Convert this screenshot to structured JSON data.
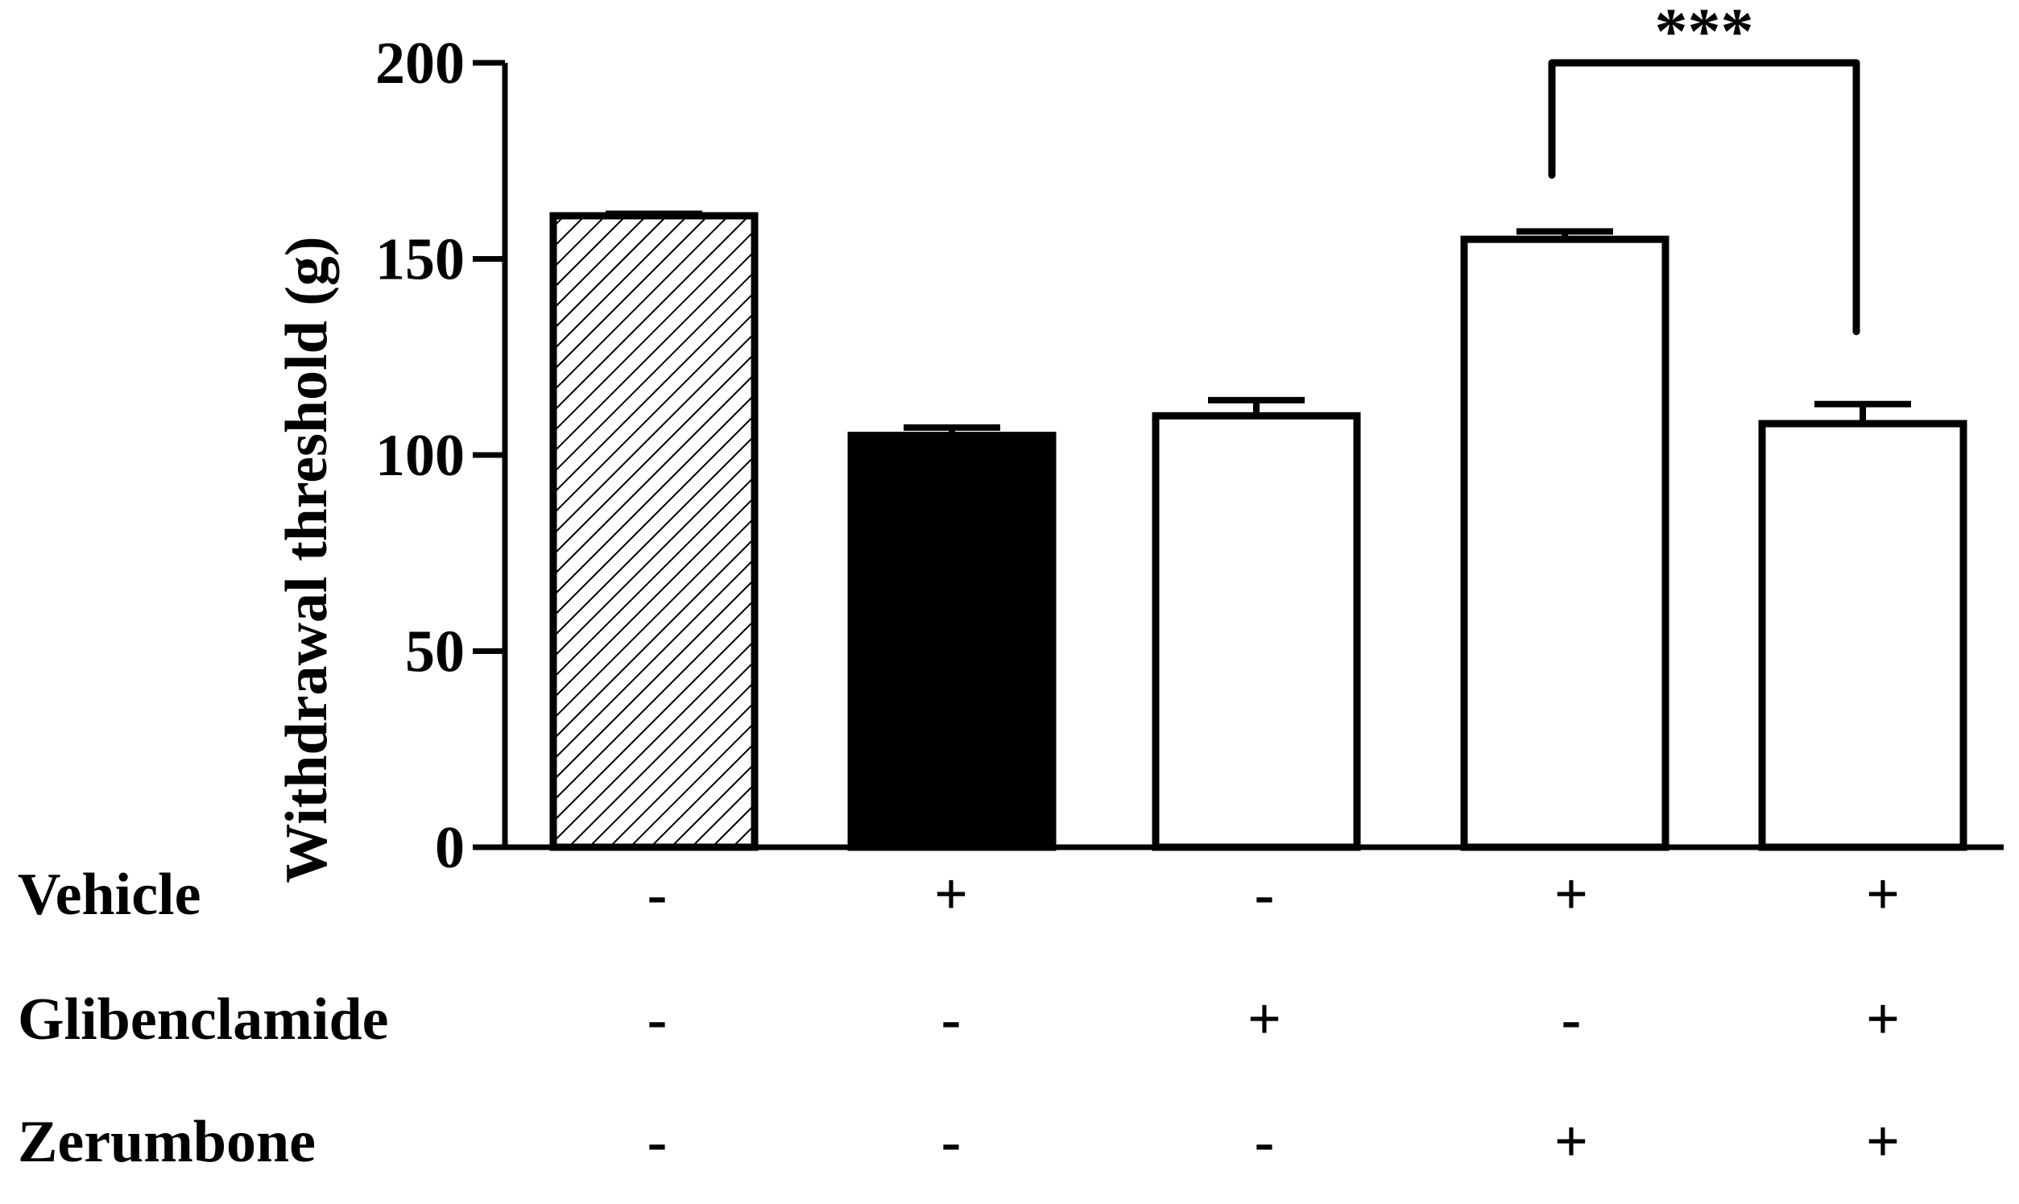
{
  "chart_data": {
    "type": "bar",
    "ylabel": "Withdrawal threshold (g)",
    "xlabel": "",
    "ylim": [
      0,
      200
    ],
    "yticks": [
      0,
      50,
      100,
      150,
      200
    ],
    "grid": false,
    "legend": "none",
    "bars": [
      {
        "value": 161,
        "error": 0.5,
        "fill": "hatch"
      },
      {
        "value": 105,
        "error": 2,
        "fill": "#000000"
      },
      {
        "value": 110,
        "error": 4,
        "fill": "#ffffff"
      },
      {
        "value": 155,
        "error": 2,
        "fill": "#ffffff"
      },
      {
        "value": 108,
        "error": 5,
        "fill": "#ffffff"
      }
    ],
    "significance": {
      "from_bar": 3,
      "to_bar": 4,
      "label": "***"
    },
    "conditions": [
      {
        "label": "Vehicle",
        "values": [
          "-",
          "+",
          "-",
          "+",
          "+"
        ]
      },
      {
        "label": "Glibenclamide",
        "values": [
          "-",
          "-",
          "+",
          "-",
          "+"
        ]
      },
      {
        "label": "Zerumbone",
        "values": [
          "-",
          "-",
          "-",
          "+",
          "+"
        ]
      }
    ]
  },
  "colors": {
    "stroke": "#000000",
    "background": "#ffffff"
  }
}
